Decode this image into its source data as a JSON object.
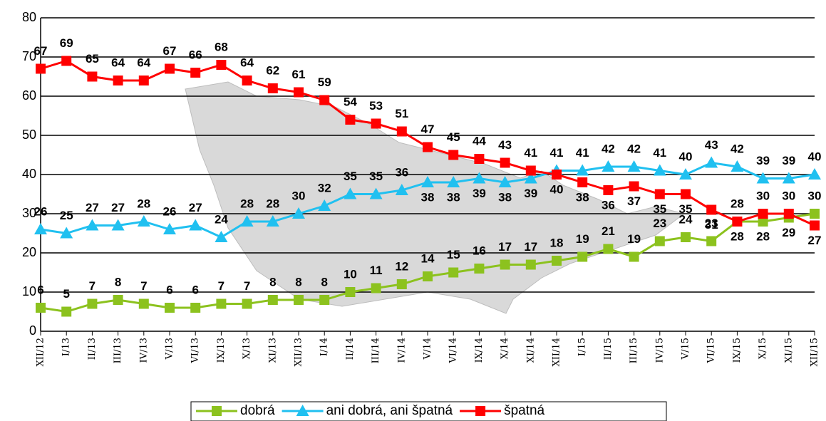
{
  "chart_data": {
    "type": "line",
    "categories": [
      "XII/12",
      "I/13",
      "II/13",
      "III/13",
      "IV/13",
      "V/13",
      "VI/13",
      "IX/13",
      "X/13",
      "XI/13",
      "XII/13",
      "I/14",
      "II/14",
      "III/14",
      "IV/14",
      "V/14",
      "VI/14",
      "IX/14",
      "X/14",
      "XI/14",
      "XII/14",
      "I/15",
      "II/15",
      "III/15",
      "IV/15",
      "V/15",
      "VI/15",
      "IX/15",
      "X/15",
      "XI/15",
      "XII/15"
    ],
    "series": [
      {
        "name": "dobrá",
        "color": "#8cc21e",
        "marker": "square",
        "values": [
          6,
          5,
          7,
          8,
          7,
          6,
          6,
          7,
          7,
          8,
          8,
          8,
          10,
          11,
          12,
          14,
          15,
          16,
          17,
          17,
          18,
          19,
          21,
          19,
          23,
          24,
          23,
          28,
          28,
          29,
          30
        ]
      },
      {
        "name": "ani dobrá, ani špatná",
        "color": "#20c0f0",
        "marker": "triangle",
        "values": [
          26,
          25,
          27,
          27,
          28,
          26,
          27,
          24,
          28,
          28,
          30,
          32,
          35,
          35,
          36,
          38,
          38,
          39,
          38,
          39,
          41,
          41,
          42,
          42,
          41,
          40,
          43,
          42,
          39,
          39,
          40
        ]
      },
      {
        "name": "špatná",
        "color": "#ff0000",
        "marker": "square",
        "values": [
          67,
          69,
          65,
          64,
          64,
          67,
          66,
          68,
          64,
          62,
          61,
          59,
          54,
          53,
          51,
          47,
          45,
          44,
          43,
          41,
          40,
          38,
          36,
          37,
          35,
          35,
          31,
          28,
          30,
          30,
          27
        ]
      }
    ],
    "ylim": [
      0,
      80
    ],
    "yticks": [
      0,
      10,
      20,
      30,
      40,
      50,
      60,
      70,
      80
    ],
    "grid": true,
    "legend": "bottom"
  }
}
